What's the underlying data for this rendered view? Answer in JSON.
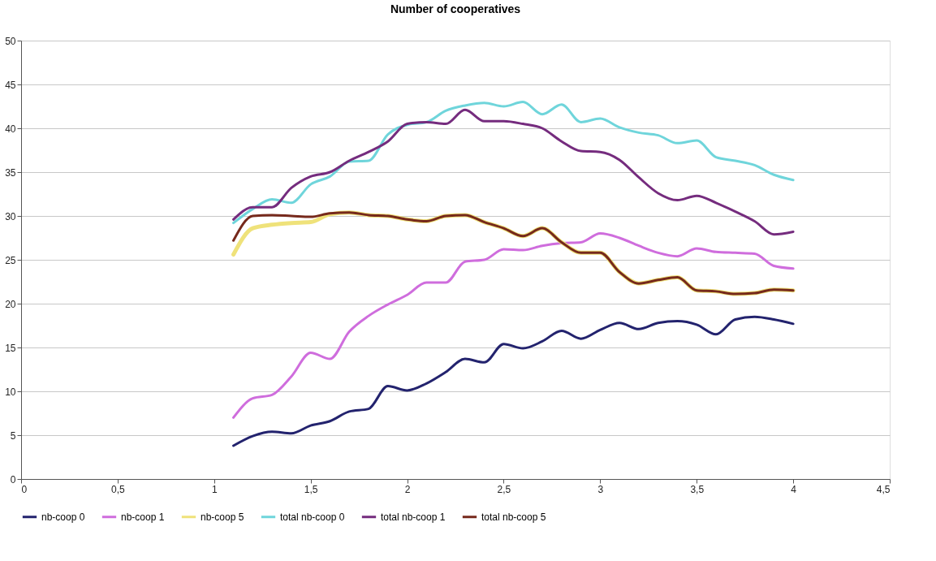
{
  "chart_data": {
    "type": "line",
    "title": "Number of cooperatives",
    "x": [
      1.1,
      1.2,
      1.3,
      1.4,
      1.5,
      1.6,
      1.7,
      1.8,
      1.9,
      2.0,
      2.1,
      2.2,
      2.3,
      2.4,
      2.5,
      2.6,
      2.7,
      2.8,
      2.9,
      3.0,
      3.1,
      3.2,
      3.3,
      3.4,
      3.5,
      3.6,
      3.7,
      3.8,
      3.9,
      4.0
    ],
    "series": [
      {
        "name": "nb-coop 0",
        "color": "#23236e",
        "values": [
          3.8,
          4.9,
          5.4,
          5.2,
          6.1,
          6.6,
          7.7,
          8.0,
          10.6,
          10.1,
          10.9,
          12.2,
          13.7,
          13.3,
          15.4,
          14.9,
          15.7,
          16.9,
          16.0,
          17.0,
          17.8,
          17.1,
          17.8,
          18.0,
          17.6,
          16.5,
          18.2,
          18.5,
          18.2,
          17.7
        ]
      },
      {
        "name": "nb-coop 1",
        "color": "#cf6ddd",
        "values": [
          7.0,
          9.2,
          9.6,
          11.7,
          14.4,
          13.7,
          16.8,
          18.6,
          19.9,
          21.0,
          22.4,
          22.4,
          24.8,
          25.0,
          26.2,
          26.1,
          26.6,
          26.9,
          27.0,
          28.0,
          27.5,
          26.6,
          25.8,
          25.4,
          26.3,
          25.9,
          25.8,
          25.7,
          24.3,
          24.0
        ]
      },
      {
        "name": "nb-coop 5",
        "color": "#efe27a",
        "values": [
          25.6,
          28.6,
          29.0,
          29.2,
          29.3,
          30.2,
          30.4,
          30.1,
          30.0,
          29.6,
          29.4,
          30.0,
          30.1,
          29.3,
          28.6,
          27.7,
          28.6,
          27.0,
          25.8,
          25.8,
          23.6,
          22.3,
          22.7,
          23.0,
          21.5,
          21.4,
          21.1,
          21.2,
          21.6,
          21.5
        ]
      },
      {
        "name": "total nb-coop 0",
        "color": "#6fd5db",
        "values": [
          29.2,
          30.8,
          31.9,
          31.5,
          33.6,
          34.5,
          36.2,
          36.3,
          39.3,
          40.4,
          40.7,
          42.0,
          42.6,
          42.9,
          42.5,
          43.0,
          41.6,
          42.7,
          40.7,
          41.1,
          40.1,
          39.5,
          39.2,
          38.3,
          38.6,
          36.7,
          36.3,
          35.8,
          34.7,
          34.1
        ]
      },
      {
        "name": "total nb-coop 1",
        "color": "#752c7e",
        "values": [
          29.6,
          31.0,
          31.0,
          33.2,
          34.5,
          35.0,
          36.3,
          37.3,
          38.5,
          40.5,
          40.7,
          40.5,
          42.1,
          40.8,
          40.8,
          40.5,
          40.0,
          38.5,
          37.4,
          37.3,
          36.4,
          34.4,
          32.6,
          31.8,
          32.3,
          31.5,
          30.5,
          29.4,
          27.9,
          28.2
        ]
      },
      {
        "name": "total nb-coop 5",
        "color": "#76291c",
        "values": [
          27.2,
          30.0,
          30.1,
          30.0,
          29.9,
          30.3,
          30.4,
          30.1,
          30.0,
          29.6,
          29.4,
          30.0,
          30.1,
          29.3,
          28.6,
          27.7,
          28.6,
          27.0,
          25.8,
          25.8,
          23.6,
          22.3,
          22.7,
          23.0,
          21.5,
          21.4,
          21.1,
          21.2,
          21.6,
          21.5
        ]
      }
    ],
    "xlim": [
      0,
      4.5
    ],
    "xticks": [
      0,
      {
        "value": 0.5,
        "label": "0,5"
      },
      1,
      {
        "value": 1.5,
        "label": "1,5"
      },
      2,
      {
        "value": 2.5,
        "label": "2,5"
      },
      3,
      {
        "value": 3.5,
        "label": "3,5"
      },
      4,
      {
        "value": 4.5,
        "label": "4,5"
      }
    ],
    "ylim": [
      0,
      50
    ],
    "yticks": [
      0,
      5,
      10,
      15,
      20,
      25,
      30,
      35,
      40,
      45,
      50
    ],
    "grid": "y",
    "legend": "bottom",
    "marker": "none",
    "line_style": "solid"
  }
}
